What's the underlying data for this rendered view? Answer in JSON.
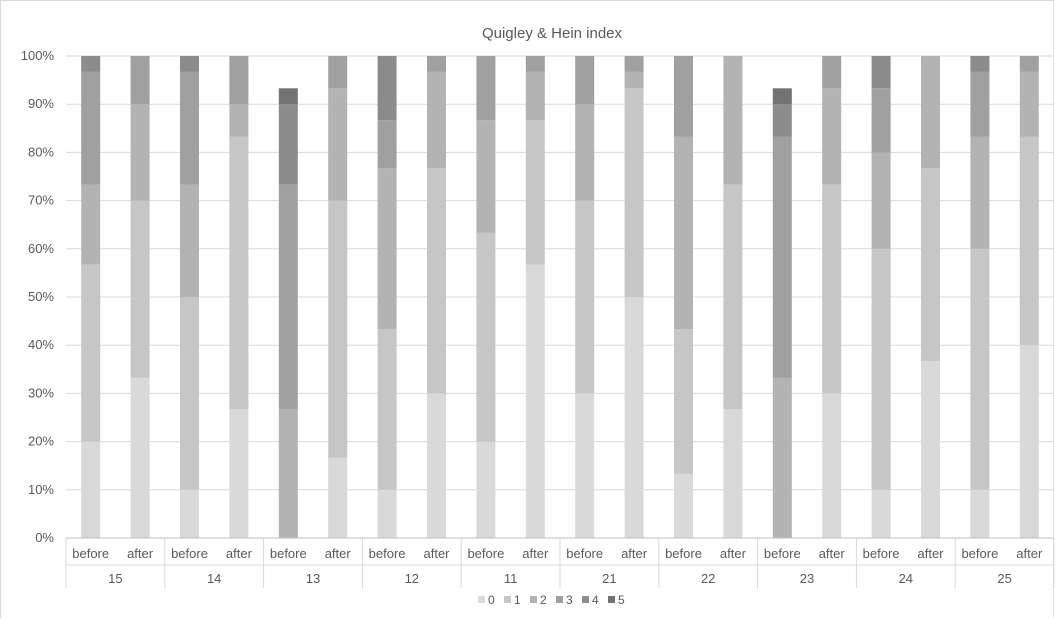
{
  "chart_data": {
    "type": "bar",
    "stacked": true,
    "percent": true,
    "title": "Quigley & Hein index",
    "xlabel": "",
    "ylabel": "",
    "ylim": [
      0,
      100
    ],
    "yticks": [
      "0%",
      "10%",
      "20%",
      "30%",
      "40%",
      "50%",
      "60%",
      "70%",
      "80%",
      "90%",
      "100%"
    ],
    "grid": true,
    "legend_position": "bottom",
    "groups": [
      "15",
      "14",
      "13",
      "12",
      "11",
      "21",
      "22",
      "23",
      "24",
      "25"
    ],
    "subcategories": [
      "before",
      "after"
    ],
    "series": [
      {
        "name": "0",
        "color": "#d9d9d9",
        "values": [
          20,
          33.3,
          10,
          26.7,
          0,
          16.7,
          10,
          30,
          20,
          56.7,
          30,
          50,
          13.3,
          26.7,
          0,
          30,
          10,
          36.7,
          10,
          40
        ]
      },
      {
        "name": "1",
        "color": "#c6c6c6",
        "values": [
          36.7,
          36.7,
          40,
          56.6,
          0,
          53.3,
          33.3,
          46.7,
          43.3,
          30,
          40,
          43.3,
          30,
          46.6,
          0,
          43.3,
          50,
          40,
          50,
          43.3
        ]
      },
      {
        "name": "2",
        "color": "#b3b3b3",
        "values": [
          16.6,
          20,
          23.3,
          6.7,
          26.7,
          23.3,
          33.4,
          20,
          23.4,
          10,
          20,
          3.4,
          40,
          26.7,
          33.3,
          20,
          20,
          23.3,
          23.3,
          13.4
        ]
      },
      {
        "name": "3",
        "color": "#a0a0a0",
        "values": [
          23.4,
          10,
          23.4,
          10,
          46.6,
          6.7,
          10,
          3.3,
          13.3,
          3.3,
          10,
          3.3,
          16.7,
          0,
          50,
          6.7,
          13.3,
          0,
          13.4,
          3.3
        ]
      },
      {
        "name": "4",
        "color": "#8c8c8c",
        "values": [
          3.3,
          0,
          3.3,
          0,
          16.7,
          0,
          13.3,
          0,
          0,
          0,
          0,
          0,
          0,
          0,
          6.7,
          0,
          6.7,
          0,
          3.3,
          0
        ]
      },
      {
        "name": "5",
        "color": "#737373",
        "values": [
          0,
          0,
          0,
          0,
          3.3,
          0,
          0,
          0,
          0,
          0,
          0,
          0,
          0,
          0,
          3.3,
          0,
          0,
          0,
          0,
          0
        ]
      }
    ]
  }
}
